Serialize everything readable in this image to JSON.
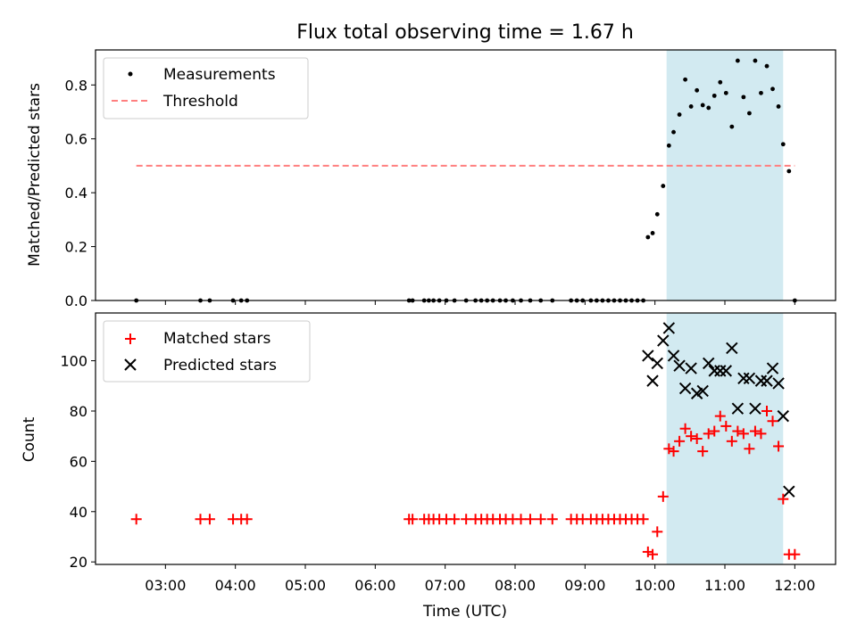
{
  "title": "Flux total observing time = 1.67 h",
  "colors": {
    "shade": "#add8e6",
    "threshold": "#ff7f7f",
    "measurements": "#000000",
    "matched": "#ff0000",
    "predicted": "#000000"
  },
  "chart_data": [
    {
      "type": "scatter",
      "title": "Flux total observing time = 1.67 h",
      "xlabel": "",
      "ylabel": "Matched/Predicted stars",
      "ylim": [
        0,
        0.93
      ],
      "yticks": [
        "0.0",
        "0.2",
        "0.4",
        "0.6",
        "0.8"
      ],
      "legend": "top-left",
      "shaded_interval": [
        "10:10",
        "11:50"
      ],
      "threshold": {
        "name": "Threshold",
        "value": 0.5,
        "x_range": [
          "02:35",
          "12:00"
        ]
      },
      "series": [
        {
          "name": "Measurements",
          "x": [
            "02:35",
            "03:30",
            "03:38",
            "03:58",
            "04:05",
            "04:10",
            "06:29",
            "06:32",
            "06:42",
            "06:46",
            "06:50",
            "06:55",
            "07:01",
            "07:08",
            "07:18",
            "07:26",
            "07:31",
            "07:36",
            "07:41",
            "07:47",
            "07:52",
            "07:58",
            "08:05",
            "08:13",
            "08:22",
            "08:32",
            "08:48",
            "08:53",
            "08:58",
            "09:05",
            "09:10",
            "09:15",
            "09:20",
            "09:25",
            "09:30",
            "09:35",
            "09:40",
            "09:45",
            "09:50",
            "09:54",
            "09:58",
            "10:02",
            "10:07",
            "10:12",
            "10:16",
            "10:21",
            "10:26",
            "10:31",
            "10:36",
            "10:41",
            "10:46",
            "10:51",
            "10:56",
            "11:01",
            "11:06",
            "11:11",
            "11:16",
            "11:21",
            "11:26",
            "11:31",
            "11:36",
            "11:41",
            "11:46",
            "11:50",
            "11:55",
            "12:00"
          ],
          "y": [
            0,
            0,
            0,
            0,
            0,
            0,
            0,
            0,
            0,
            0,
            0,
            0,
            0,
            0,
            0,
            0,
            0,
            0,
            0,
            0,
            0,
            0,
            0,
            0,
            0,
            0,
            0,
            0,
            0,
            0,
            0,
            0,
            0,
            0,
            0,
            0,
            0,
            0,
            0,
            0.235,
            0.25,
            0.32,
            0.425,
            0.575,
            0.625,
            0.69,
            0.82,
            0.72,
            0.78,
            0.725,
            0.715,
            0.76,
            0.81,
            0.77,
            0.645,
            0.89,
            0.755,
            0.695,
            0.89,
            0.77,
            0.87,
            0.785,
            0.72,
            0.58,
            0.48,
            0
          ]
        }
      ]
    },
    {
      "type": "scatter",
      "xlabel": "Time (UTC)",
      "ylabel": "Count",
      "ylim": [
        19,
        119
      ],
      "yticks": [
        "20",
        "40",
        "60",
        "80",
        "100"
      ],
      "xticks": [
        "03:00",
        "04:00",
        "05:00",
        "06:00",
        "07:00",
        "08:00",
        "09:00",
        "10:00",
        "11:00",
        "12:00"
      ],
      "legend": "top-left",
      "shaded_interval": [
        "10:10",
        "11:50"
      ],
      "series": [
        {
          "name": "Matched stars",
          "x": [
            "02:35",
            "03:30",
            "03:38",
            "03:58",
            "04:05",
            "04:10",
            "06:29",
            "06:32",
            "06:42",
            "06:46",
            "06:50",
            "06:55",
            "07:01",
            "07:08",
            "07:18",
            "07:26",
            "07:31",
            "07:36",
            "07:41",
            "07:47",
            "07:52",
            "07:58",
            "08:05",
            "08:13",
            "08:22",
            "08:32",
            "08:48",
            "08:53",
            "08:58",
            "09:05",
            "09:10",
            "09:15",
            "09:20",
            "09:25",
            "09:30",
            "09:35",
            "09:40",
            "09:45",
            "09:50",
            "09:54",
            "09:58",
            "10:02",
            "10:07",
            "10:12",
            "10:16",
            "10:21",
            "10:26",
            "10:31",
            "10:36",
            "10:41",
            "10:46",
            "10:51",
            "10:56",
            "11:01",
            "11:06",
            "11:11",
            "11:16",
            "11:21",
            "11:26",
            "11:31",
            "11:36",
            "11:41",
            "11:46",
            "11:50",
            "11:55",
            "12:00"
          ],
          "y": [
            37,
            37,
            37,
            37,
            37,
            37,
            37,
            37,
            37,
            37,
            37,
            37,
            37,
            37,
            37,
            37,
            37,
            37,
            37,
            37,
            37,
            37,
            37,
            37,
            37,
            37,
            37,
            37,
            37,
            37,
            37,
            37,
            37,
            37,
            37,
            37,
            37,
            37,
            37,
            24,
            23,
            32,
            46,
            65,
            64,
            68,
            73,
            70,
            69,
            64,
            71,
            72,
            78,
            74,
            68,
            72,
            71,
            65,
            72,
            71,
            80,
            76,
            66,
            45,
            23,
            23
          ]
        },
        {
          "name": "Predicted stars",
          "x": [
            "09:54",
            "09:58",
            "10:02",
            "10:07",
            "10:12",
            "10:16",
            "10:21",
            "10:26",
            "10:31",
            "10:36",
            "10:41",
            "10:46",
            "10:51",
            "10:56",
            "11:01",
            "11:06",
            "11:11",
            "11:16",
            "11:21",
            "11:26",
            "11:31",
            "11:36",
            "11:41",
            "11:46",
            "11:50",
            "11:55"
          ],
          "y": [
            102,
            92,
            99,
            108,
            113,
            102,
            98,
            89,
            97,
            87,
            88,
            99,
            96,
            96,
            96,
            105,
            81,
            93,
            93,
            81,
            92,
            92,
            97,
            91,
            78,
            48
          ]
        }
      ]
    }
  ]
}
